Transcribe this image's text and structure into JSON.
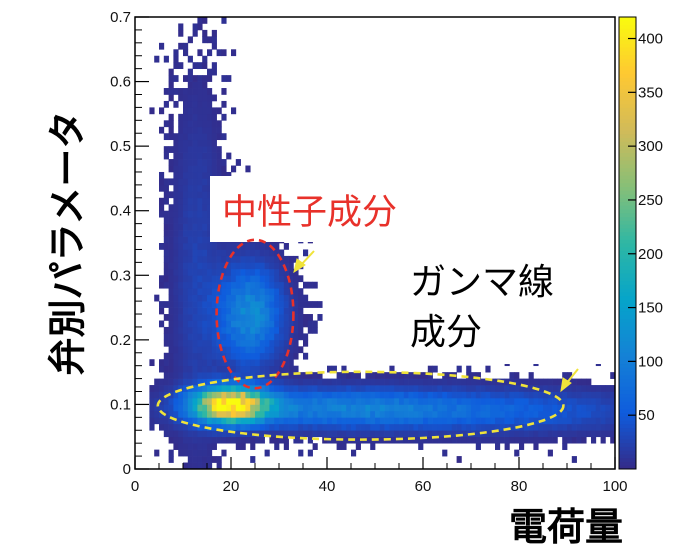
{
  "chart_data": {
    "type": "heatmap",
    "title": "",
    "xlabel": "電荷量",
    "ylabel": "弁別パラメータ",
    "xlim": [
      0,
      100
    ],
    "ylim": [
      0,
      0.7
    ],
    "x_ticks": [
      0,
      20,
      40,
      60,
      80,
      100
    ],
    "x_tick_labels": [
      "0",
      "20",
      "40",
      "60",
      "80",
      "100"
    ],
    "y_ticks": [
      0,
      0.1,
      0.2,
      0.3,
      0.4,
      0.5,
      0.6,
      0.7
    ],
    "y_tick_labels": [
      "0",
      "0.1",
      "0.2",
      "0.3",
      "0.4",
      "0.5",
      "0.6",
      "0.7"
    ],
    "colorbar": {
      "range": [
        0,
        420
      ],
      "ticks": [
        50,
        100,
        150,
        200,
        250,
        300,
        350,
        400
      ],
      "tick_labels": [
        "50",
        "100",
        "150",
        "200",
        "250",
        "300",
        "350",
        "400"
      ],
      "colors": [
        "#352a87",
        "#0f5cdd",
        "#1481d6",
        "#06a4ca",
        "#2eb7a4",
        "#87bf77",
        "#d1bb59",
        "#fec832",
        "#f9fb0e"
      ]
    },
    "regions": [
      {
        "label": "中性子成分",
        "color": "#e8312a",
        "center_x": 25,
        "center_y": 0.24,
        "x_range": [
          17.5,
          33.5
        ],
        "y_range": [
          0.12,
          0.35
        ]
      },
      {
        "label_lines": [
          "ガンマ線",
          "成分"
        ],
        "color": "#f0e33a",
        "center_x": 47,
        "center_y": 0.098,
        "x_range": [
          9.5,
          94
        ],
        "y_range": [
          0.045,
          0.15
        ]
      }
    ],
    "density_components": [
      {
        "x": 20,
        "y": 0.1,
        "sx": 5,
        "sy": 0.018,
        "amplitude": 400
      },
      {
        "x": 40,
        "y": 0.095,
        "sx": 18,
        "sy": 0.02,
        "amplitude": 90
      },
      {
        "x": 75,
        "y": 0.09,
        "sx": 22,
        "sy": 0.022,
        "amplitude": 55
      },
      {
        "x": 24,
        "y": 0.24,
        "sx": 4.5,
        "sy": 0.05,
        "amplitude": 120
      },
      {
        "x": 13,
        "y": 0.3,
        "sx": 3.5,
        "sy": 0.18,
        "amplitude": 25
      }
    ]
  },
  "annotations": {
    "neutron_label": "中性子成分",
    "gamma_label_line1": "ガンマ線",
    "gamma_label_line2": "成分"
  }
}
